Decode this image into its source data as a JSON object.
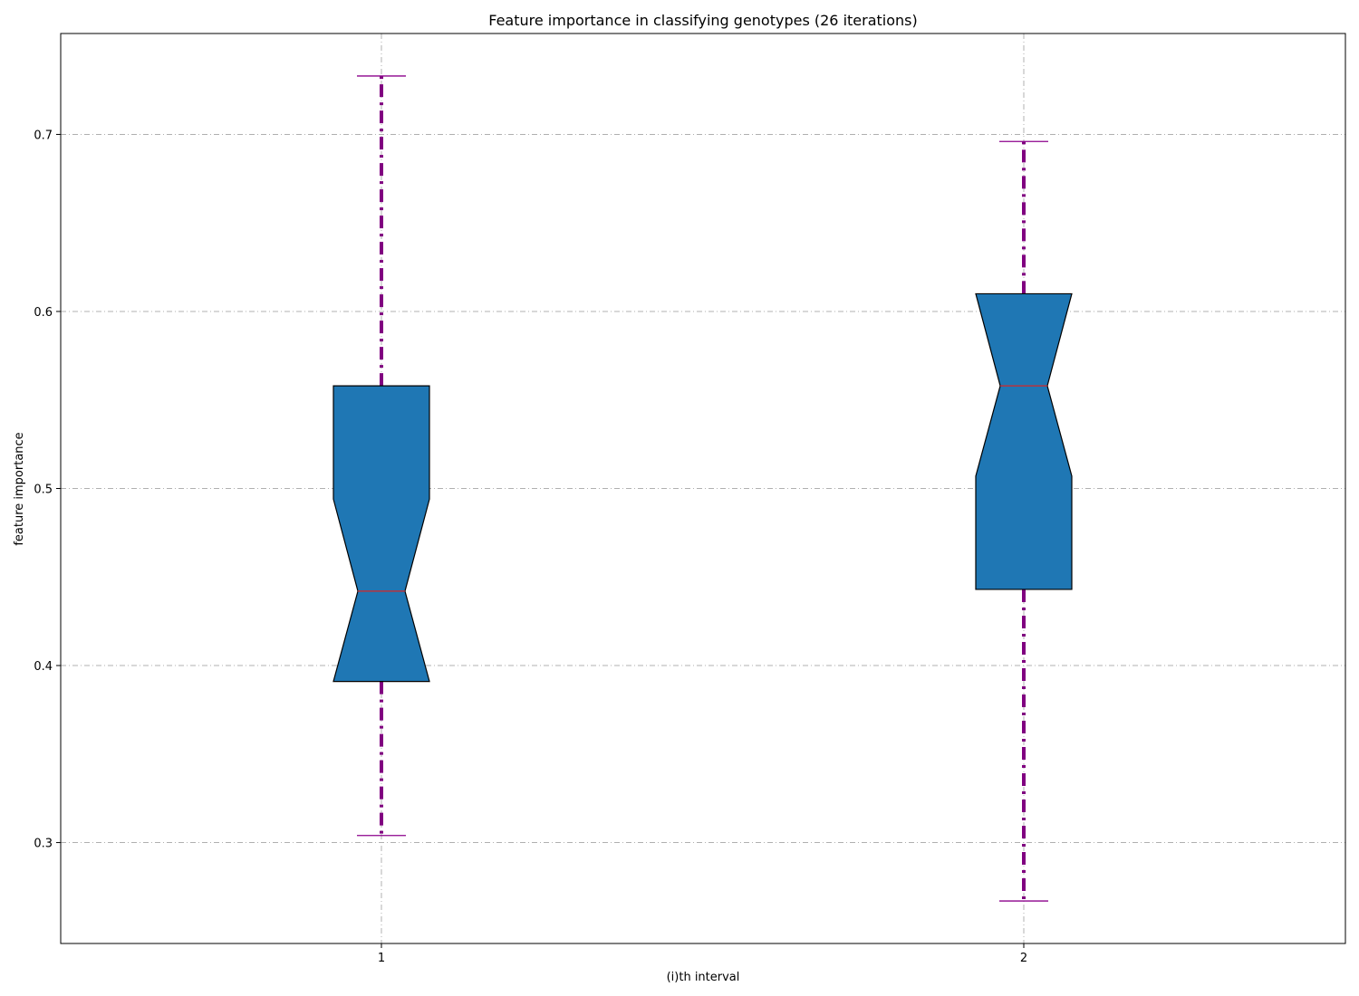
{
  "chart_data": {
    "type": "box",
    "title": "Feature importance in classifying genotypes (26 iterations)",
    "xlabel": "(i)th interval",
    "ylabel": "feature importance",
    "categories": [
      "1",
      "2"
    ],
    "notched": true,
    "boxes": [
      {
        "label": "1",
        "whisker_low": 0.304,
        "q1": 0.391,
        "median": 0.442,
        "q3": 0.558,
        "whisker_high": 0.733,
        "notch_low": 0.391,
        "notch_high": 0.494
      },
      {
        "label": "2",
        "whisker_low": 0.267,
        "q1": 0.443,
        "median": 0.558,
        "q3": 0.61,
        "whisker_high": 0.696,
        "notch_low": 0.507,
        "notch_high": 0.61
      }
    ],
    "ylim": [
      0.243,
      0.757
    ],
    "yticks": [
      0.3,
      0.4,
      0.5,
      0.6,
      0.7
    ],
    "ytick_labels": [
      "0.3",
      "0.4",
      "0.5",
      "0.6",
      "0.7"
    ],
    "grid": true,
    "colors": {
      "box_fill": "#1f77b4",
      "box_edge": "#000000",
      "median": "#d62728",
      "whisker": "#800080",
      "cap": "#8b008b",
      "grid": "#b0b0b0"
    }
  }
}
